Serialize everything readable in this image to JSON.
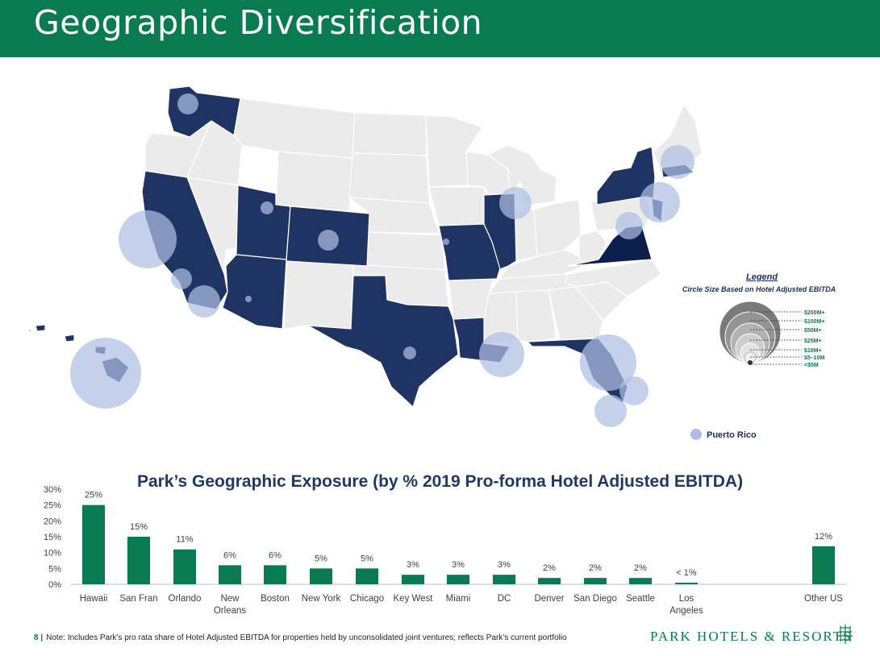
{
  "title": "Geographic Diversification",
  "legend": {
    "title": "Legend",
    "subtitle": "Circle Size Based on Hotel Adjusted EBITDA",
    "tiers": [
      "$200M+",
      "$100M+",
      "$50M+",
      "$25M+",
      "$10M+",
      "$5–10M",
      "<$5M"
    ]
  },
  "map_labels": {
    "puerto_rico": "Puerto Rico"
  },
  "colors": {
    "brand_green": "#0a7a52",
    "state_navy": "#1f3462",
    "bubble": "#aebee3",
    "state_gray": "#ebebeb"
  },
  "chart_data": {
    "type": "bar",
    "title": "Park’s Geographic Exposure (by % 2019 Pro-forma Hotel Adjusted EBITDA)",
    "categories": [
      "Hawaii",
      "San Fran",
      "Orlando",
      "New Orleans",
      "Boston",
      "New York",
      "Chicago",
      "Key West",
      "Miami",
      "DC",
      "Denver",
      "San Diego",
      "Seattle",
      "Los Angeles",
      "Other US"
    ],
    "values": [
      25,
      15,
      11,
      6,
      6,
      5,
      5,
      3,
      3,
      3,
      2,
      2,
      2,
      0.5,
      12
    ],
    "data_labels": [
      "25%",
      "15%",
      "11%",
      "6%",
      "6%",
      "5%",
      "5%",
      "3%",
      "3%",
      "3%",
      "2%",
      "2%",
      "2%",
      "< 1%",
      "12%"
    ],
    "y_ticks": [
      "0%",
      "5%",
      "10%",
      "15%",
      "20%",
      "25%",
      "30%"
    ],
    "ylim": [
      0,
      30
    ],
    "grid": false,
    "bar_color": "#0a7a52"
  },
  "footer": {
    "page": "8 |",
    "note": "Note: Includes Park’s pro rata share of Hotel Adjusted EBITDA for properties held by unconsolidated joint ventures; reflects Park’s current portfolio",
    "brand": "PARK HOTELS & RESORTS"
  }
}
